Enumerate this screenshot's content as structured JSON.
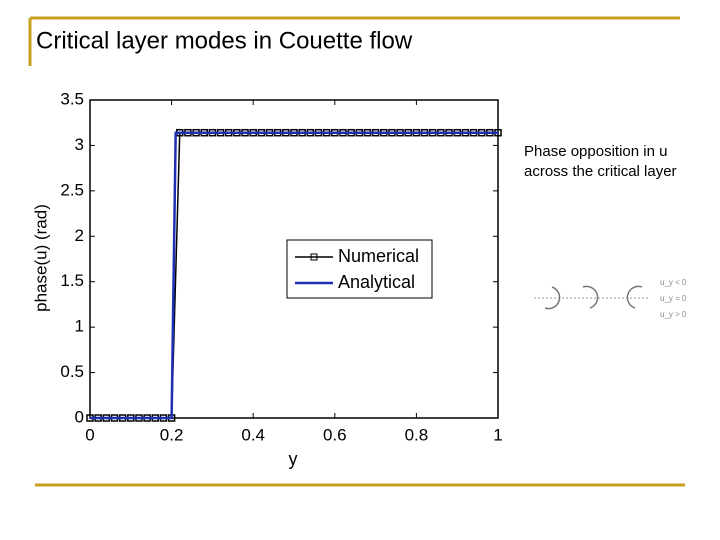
{
  "title": "Critical layer modes in Couette flow",
  "annotation": [
    "Phase opposition in u",
    "across the critical layer"
  ],
  "diagram_labels": [
    "u_y < 0",
    "u_y = 0",
    "u_y > 0"
  ],
  "chart_data": {
    "type": "line",
    "xlabel": "y",
    "ylabel": "phase(u) (rad)",
    "xlim": [
      0,
      1
    ],
    "xticks": [
      0,
      0.2,
      0.4,
      0.6,
      0.8,
      1
    ],
    "ylim": [
      0,
      3.5
    ],
    "yticks": [
      0,
      0.5,
      1,
      1.5,
      2,
      2.5,
      3,
      3.5
    ],
    "legend": "center",
    "series": [
      {
        "name": "Numerical",
        "color": "#000000",
        "marker": "square",
        "x": [
          0,
          0.02,
          0.04,
          0.06,
          0.08,
          0.1,
          0.12,
          0.14,
          0.16,
          0.18,
          0.2,
          0.22,
          0.24,
          0.26,
          0.28,
          0.3,
          0.32,
          0.34,
          0.36,
          0.38,
          0.4,
          0.42,
          0.44,
          0.46,
          0.48,
          0.5,
          0.52,
          0.54,
          0.56,
          0.58,
          0.6,
          0.62,
          0.64,
          0.66,
          0.68,
          0.7,
          0.72,
          0.74,
          0.76,
          0.78,
          0.8,
          0.82,
          0.84,
          0.86,
          0.88,
          0.9,
          0.92,
          0.94,
          0.96,
          0.98,
          1
        ],
        "values": [
          0,
          0,
          0,
          0,
          0,
          0,
          0,
          0,
          0,
          0,
          0,
          3.14,
          3.14,
          3.14,
          3.14,
          3.14,
          3.14,
          3.14,
          3.14,
          3.14,
          3.14,
          3.14,
          3.14,
          3.14,
          3.14,
          3.14,
          3.14,
          3.14,
          3.14,
          3.14,
          3.14,
          3.14,
          3.14,
          3.14,
          3.14,
          3.14,
          3.14,
          3.14,
          3.14,
          3.14,
          3.14,
          3.14,
          3.14,
          3.14,
          3.14,
          3.14,
          3.14,
          3.14,
          3.14,
          3.14,
          3.14
        ]
      },
      {
        "name": "Analytical",
        "color": "#1f2fb4",
        "x": [
          0,
          0.2,
          0.21,
          1
        ],
        "values": [
          0,
          0,
          3.14,
          3.14
        ]
      }
    ]
  }
}
